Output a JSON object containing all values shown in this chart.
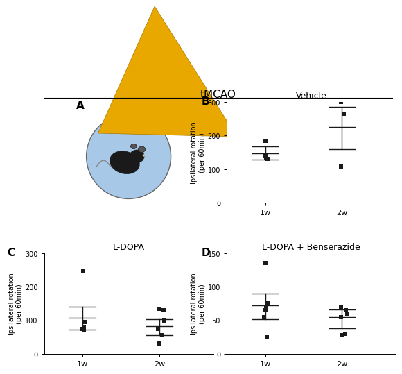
{
  "title": "tMCAO",
  "panel_B_title": "Vehicle",
  "panel_C_title": "L-DOPA",
  "panel_D_title": "L-DOPA + Benserazide",
  "ylabel": "Ipsilateral rotation\n(per 60min)",
  "xtick_labels": [
    "1w",
    "2w"
  ],
  "B_1w_points": [
    185,
    130,
    135,
    140
  ],
  "B_2w_points": [
    300,
    265,
    108
  ],
  "B_1w_mean": 148,
  "B_1w_ci_low": 128,
  "B_1w_ci_high": 168,
  "B_2w_mean": 225,
  "B_2w_ci_low": 160,
  "B_2w_ci_high": 285,
  "B_ylim": [
    0,
    300
  ],
  "B_yticks": [
    0,
    100,
    200,
    300
  ],
  "C_1w_points": [
    245,
    95,
    80,
    75,
    75,
    70
  ],
  "C_2w_points": [
    135,
    130,
    100,
    75,
    55,
    30
  ],
  "C_1w_mean": 108,
  "C_1w_ci_low": 73,
  "C_1w_ci_high": 140,
  "C_2w_mean": 83,
  "C_2w_ci_low": 55,
  "C_2w_ci_high": 103,
  "C_ylim": [
    0,
    300
  ],
  "C_yticks": [
    0,
    100,
    200,
    300
  ],
  "D_1w_points": [
    135,
    75,
    70,
    65,
    55,
    25
  ],
  "D_2w_points": [
    70,
    65,
    60,
    55,
    30,
    28
  ],
  "D_1w_mean": 72,
  "D_1w_ci_low": 52,
  "D_1w_ci_high": 90,
  "D_2w_mean": 55,
  "D_2w_ci_low": 38,
  "D_2w_ci_high": 66,
  "D_ylim": [
    0,
    150
  ],
  "D_yticks": [
    0,
    50,
    100,
    150
  ],
  "dot_color": "#1a1a1a",
  "line_color": "#1a1a1a",
  "bg_color": "#ffffff",
  "circle_fill": "#a8c8e8",
  "circle_edge": "#666666",
  "arrow_color": "#E8A800"
}
